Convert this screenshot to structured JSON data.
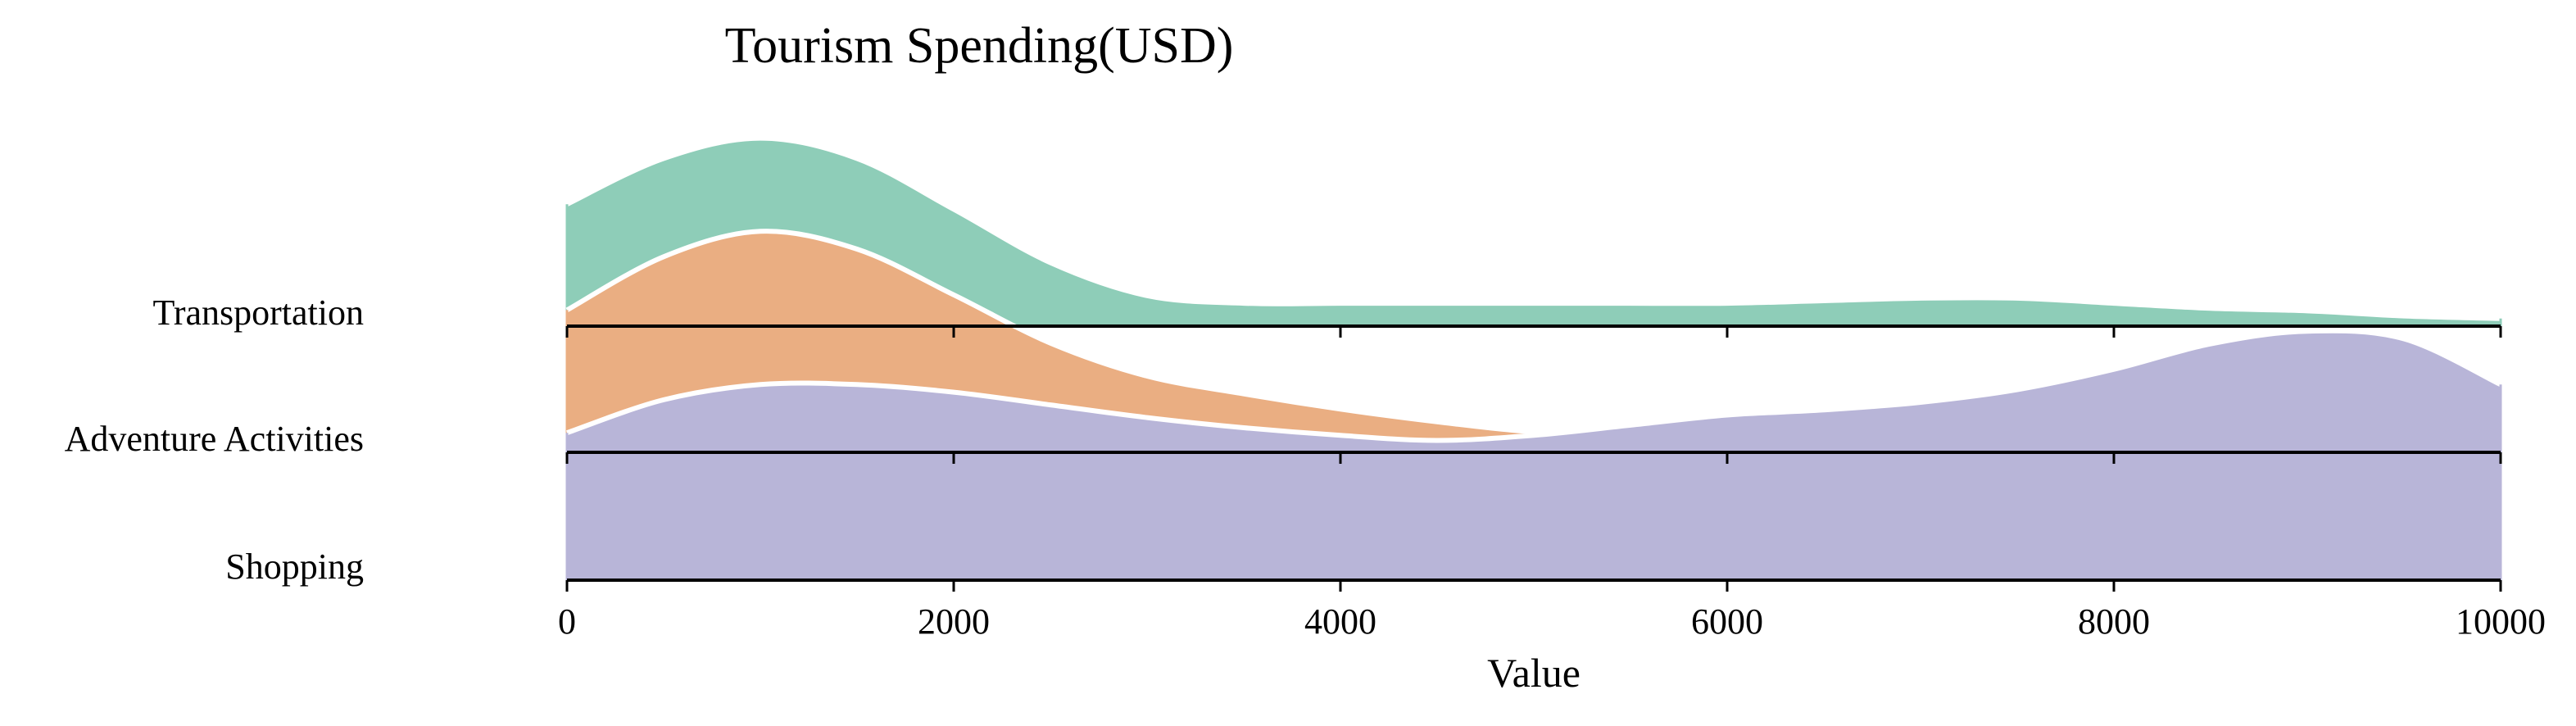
{
  "chart_data": {
    "type": "area",
    "subtype": "ridgeline",
    "title": "Tourism Spending(USD)",
    "xlabel": "Value",
    "ylabel": "",
    "xlim": [
      0,
      10000
    ],
    "xticks": [
      0,
      2000,
      4000,
      6000,
      8000,
      10000
    ],
    "grid": false,
    "x": [
      0,
      500,
      1000,
      1500,
      2000,
      2500,
      3000,
      3500,
      4000,
      4500,
      5000,
      5500,
      6000,
      6500,
      7000,
      7500,
      8000,
      8500,
      9000,
      9500,
      10000
    ],
    "series": [
      {
        "name": "Transportation",
        "color": "#8ecdb8",
        "values": [
          0.48,
          0.66,
          0.74,
          0.66,
          0.46,
          0.25,
          0.12,
          0.09,
          0.09,
          0.09,
          0.09,
          0.09,
          0.09,
          0.1,
          0.11,
          0.11,
          0.09,
          0.07,
          0.06,
          0.04,
          0.03
        ]
      },
      {
        "name": "Adventure Activities",
        "color": "#eaae82",
        "values": [
          0.56,
          0.77,
          0.87,
          0.8,
          0.62,
          0.43,
          0.3,
          0.23,
          0.17,
          0.12,
          0.08,
          0.07,
          0.07,
          0.07,
          0.07,
          0.07,
          0.08,
          0.1,
          0.13,
          0.12,
          0.1
        ]
      },
      {
        "name": "Shopping",
        "color": "#b8b5d8",
        "values": [
          0.58,
          0.71,
          0.77,
          0.77,
          0.74,
          0.69,
          0.64,
          0.6,
          0.57,
          0.55,
          0.57,
          0.61,
          0.65,
          0.67,
          0.7,
          0.75,
          0.83,
          0.93,
          0.98,
          0.95,
          0.77
        ]
      }
    ]
  }
}
